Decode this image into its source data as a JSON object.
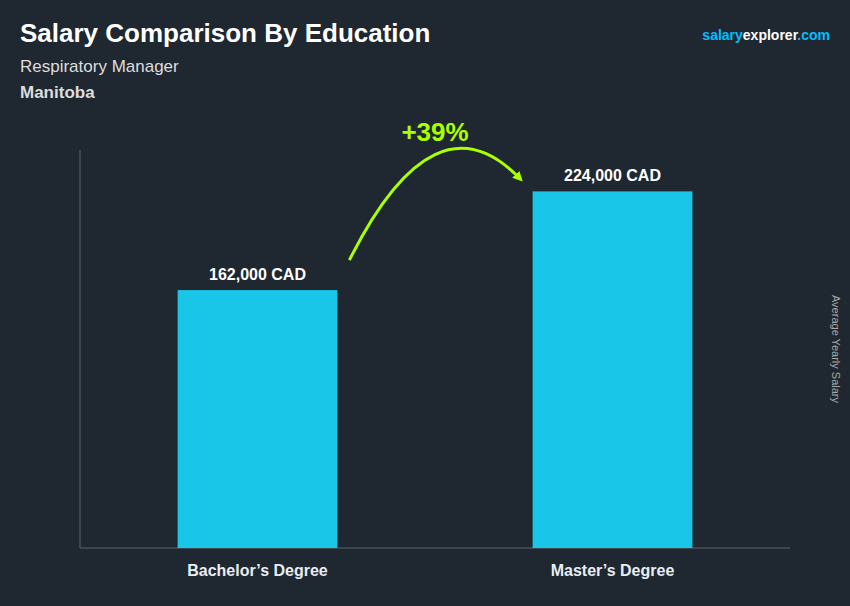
{
  "chart_data": {
    "type": "bar",
    "title": "Salary Comparison By Education",
    "subtitle": "Respiratory Manager",
    "location": "Manitoba",
    "source": [
      {
        "text": "salary",
        "color": "#00BFFF"
      },
      {
        "text": "explorer",
        "color": "#FFFFFF"
      },
      {
        "text": ".com",
        "color": "#00BFFF"
      }
    ],
    "y_label": "Average Yearly Salary",
    "categories": [
      "Bachelor’s Degree",
      "Master’s Degree"
    ],
    "values": [
      162000,
      224000
    ],
    "value_labels": [
      "162,000 CAD",
      "224,000 CAD"
    ],
    "data_labels": true,
    "color": "#1AC6E8",
    "annotations": [
      {
        "text": "+39%",
        "color": "#AAFF00"
      }
    ],
    "ylim": [
      0,
      250000
    ],
    "tick_labels": false,
    "grid": false
  }
}
